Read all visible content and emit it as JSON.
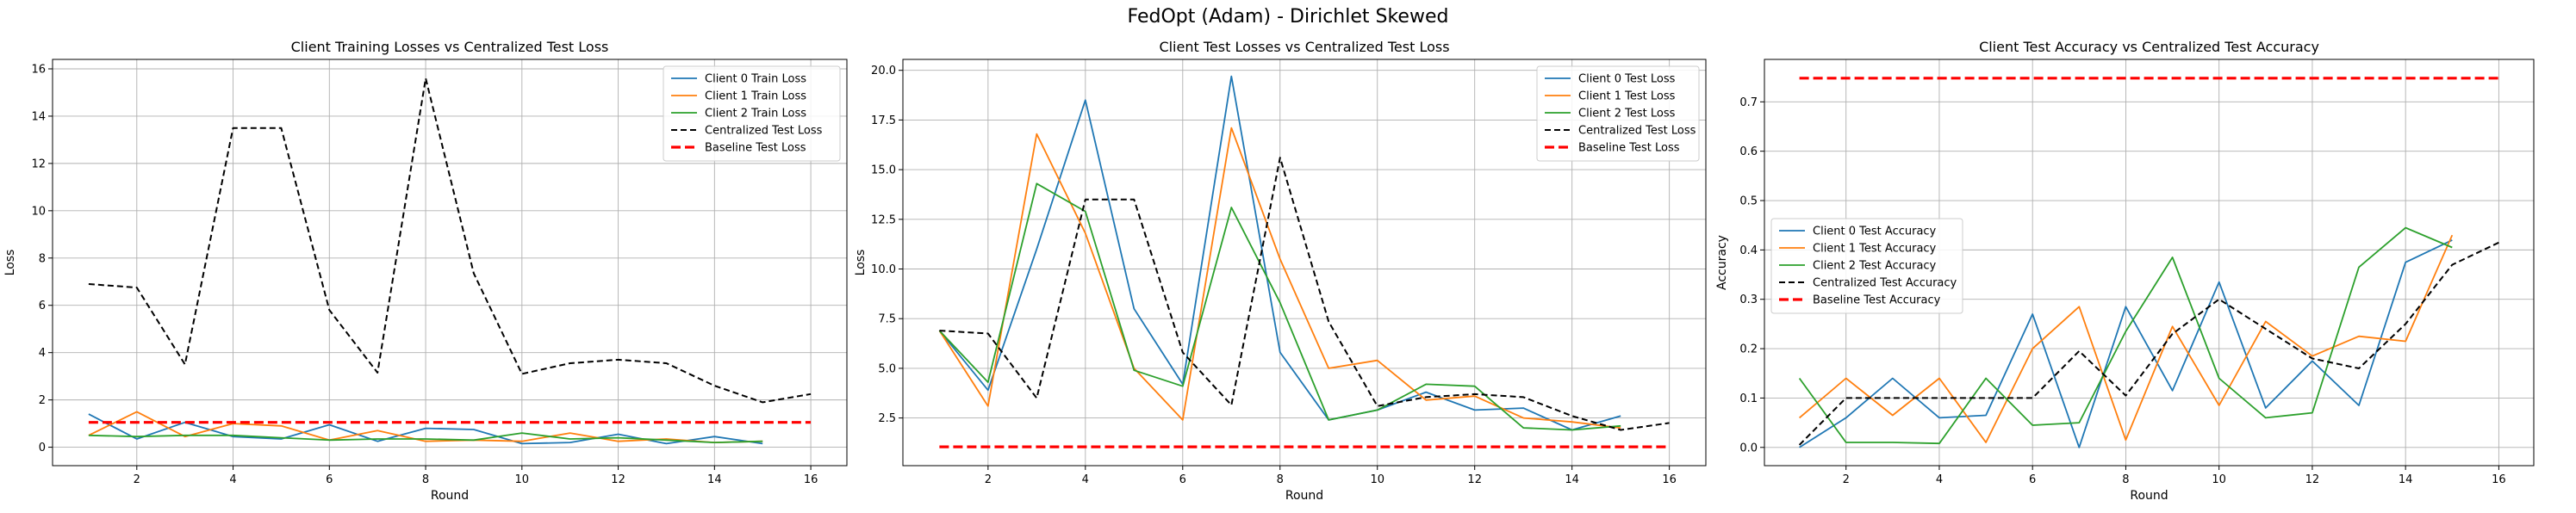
{
  "suptitle": "FedOpt (Adam) - Dirichlet Skewed",
  "colors": {
    "client0": "#1f77b4",
    "client1": "#ff7f0e",
    "client2": "#2ca02c",
    "centralized": "#000000",
    "baseline": "#ff0000",
    "grid": "#b0b0b0"
  },
  "chart_data": [
    {
      "type": "line",
      "title": "Client Training Losses vs Centralized Test Loss",
      "xlabel": "Round",
      "ylabel": "Loss",
      "xlim": [
        0.25,
        16.75
      ],
      "ylim": [
        -0.78,
        16.4
      ],
      "xticks": [
        2,
        4,
        6,
        8,
        10,
        12,
        14,
        16
      ],
      "yticks": [
        0,
        2,
        4,
        6,
        8,
        10,
        12,
        14,
        16
      ],
      "grid": true,
      "legend_position": "upper-right",
      "series": [
        {
          "name": "Client 0 Train Loss",
          "color_key": "client0",
          "style": "solid",
          "x": [
            1,
            2,
            3,
            4,
            5,
            6,
            7,
            8,
            9,
            10,
            11,
            12,
            13,
            14,
            15
          ],
          "y": [
            1.4,
            0.35,
            1.05,
            0.45,
            0.35,
            0.95,
            0.25,
            0.8,
            0.75,
            0.15,
            0.2,
            0.55,
            0.15,
            0.45,
            0.15
          ]
        },
        {
          "name": "Client 1 Train Loss",
          "color_key": "client1",
          "style": "solid",
          "x": [
            1,
            2,
            3,
            4,
            5,
            6,
            7,
            8,
            9,
            10,
            11,
            12,
            13,
            14,
            15
          ],
          "y": [
            0.5,
            1.5,
            0.45,
            1.0,
            0.9,
            0.3,
            0.7,
            0.25,
            0.3,
            0.25,
            0.6,
            0.25,
            0.35,
            0.2,
            0.25
          ]
        },
        {
          "name": "Client 2 Train Loss",
          "color_key": "client2",
          "style": "solid",
          "x": [
            1,
            2,
            3,
            4,
            5,
            6,
            7,
            8,
            9,
            10,
            11,
            12,
            13,
            14,
            15
          ],
          "y": [
            0.5,
            0.45,
            0.5,
            0.5,
            0.4,
            0.3,
            0.35,
            0.35,
            0.3,
            0.6,
            0.35,
            0.4,
            0.3,
            0.2,
            0.25
          ]
        },
        {
          "name": "Centralized Test Loss",
          "color_key": "centralized",
          "style": "dashed",
          "x": [
            1,
            2,
            3,
            4,
            5,
            6,
            7,
            8,
            9,
            10,
            11,
            12,
            13,
            14,
            15,
            16
          ],
          "y": [
            6.9,
            6.75,
            3.5,
            13.5,
            13.5,
            5.8,
            3.15,
            15.6,
            7.35,
            3.1,
            3.55,
            3.7,
            3.55,
            2.6,
            1.9,
            2.25
          ]
        },
        {
          "name": "Baseline Test Loss",
          "color_key": "baseline",
          "style": "dashed-thick",
          "x": [
            1,
            16
          ],
          "y": [
            1.05,
            1.05
          ]
        }
      ]
    },
    {
      "type": "line",
      "title": "Client Test Losses vs Centralized Test Loss",
      "xlabel": "Round",
      "ylabel": "Loss",
      "xlim": [
        0.25,
        16.75
      ],
      "ylim": [
        0.1,
        20.55
      ],
      "xticks": [
        2,
        4,
        6,
        8,
        10,
        12,
        14,
        16
      ],
      "yticks": [
        2.5,
        5.0,
        7.5,
        10.0,
        12.5,
        15.0,
        17.5,
        20.0
      ],
      "ytick_labels": [
        "2.5",
        "5.0",
        "7.5",
        "10.0",
        "12.5",
        "15.0",
        "17.5",
        "20.0"
      ],
      "grid": true,
      "legend_position": "upper-right",
      "series": [
        {
          "name": "Client 0 Test Loss",
          "color_key": "client0",
          "style": "solid",
          "x": [
            1,
            2,
            3,
            4,
            5,
            6,
            7,
            8,
            9,
            10,
            11,
            12,
            13,
            14,
            15
          ],
          "y": [
            6.9,
            3.9,
            11.0,
            18.5,
            8.0,
            4.2,
            19.7,
            5.8,
            2.4,
            2.9,
            3.8,
            2.9,
            3.0,
            1.9,
            2.6
          ]
        },
        {
          "name": "Client 1 Test Loss",
          "color_key": "client1",
          "style": "solid",
          "x": [
            1,
            2,
            3,
            4,
            5,
            6,
            7,
            8,
            9,
            10,
            11,
            12,
            13,
            14,
            15
          ],
          "y": [
            6.9,
            3.1,
            16.8,
            11.8,
            5.0,
            2.4,
            17.1,
            10.5,
            5.0,
            5.4,
            3.4,
            3.6,
            2.5,
            2.3,
            2.0
          ]
        },
        {
          "name": "Client 2 Test Loss",
          "color_key": "client2",
          "style": "solid",
          "x": [
            1,
            2,
            3,
            4,
            5,
            6,
            7,
            8,
            9,
            10,
            11,
            12,
            13,
            14,
            15
          ],
          "y": [
            6.9,
            4.3,
            14.3,
            12.9,
            4.9,
            4.1,
            13.1,
            8.3,
            2.4,
            2.9,
            4.2,
            4.1,
            2.0,
            1.9,
            2.1
          ]
        },
        {
          "name": "Centralized Test Loss",
          "color_key": "centralized",
          "style": "dashed",
          "x": [
            1,
            2,
            3,
            4,
            5,
            6,
            7,
            8,
            9,
            10,
            11,
            12,
            13,
            14,
            15,
            16
          ],
          "y": [
            6.9,
            6.75,
            3.5,
            13.5,
            13.5,
            5.8,
            3.15,
            15.6,
            7.35,
            3.1,
            3.55,
            3.7,
            3.55,
            2.6,
            1.9,
            2.25
          ]
        },
        {
          "name": "Baseline Test Loss",
          "color_key": "baseline",
          "style": "dashed-thick",
          "x": [
            1,
            16
          ],
          "y": [
            1.05,
            1.05
          ]
        }
      ]
    },
    {
      "type": "line",
      "title": "Client Test Accuracy vs Centralized Test Accuracy",
      "xlabel": "Round",
      "ylabel": "Accuracy",
      "xlim": [
        0.25,
        16.75
      ],
      "ylim": [
        -0.037,
        0.786
      ],
      "xticks": [
        2,
        4,
        6,
        8,
        10,
        12,
        14,
        16
      ],
      "yticks": [
        0.0,
        0.1,
        0.2,
        0.3,
        0.4,
        0.5,
        0.6,
        0.7
      ],
      "ytick_labels": [
        "0.0",
        "0.1",
        "0.2",
        "0.3",
        "0.4",
        "0.5",
        "0.6",
        "0.7"
      ],
      "grid": true,
      "legend_position": "center-left",
      "series": [
        {
          "name": "Client 0 Test Accuracy",
          "color_key": "client0",
          "style": "solid",
          "x": [
            1,
            2,
            3,
            4,
            5,
            6,
            7,
            8,
            9,
            10,
            11,
            12,
            13,
            14,
            15
          ],
          "y": [
            0.0,
            0.06,
            0.14,
            0.06,
            0.065,
            0.27,
            0.0,
            0.285,
            0.115,
            0.335,
            0.08,
            0.175,
            0.085,
            0.375,
            0.42
          ]
        },
        {
          "name": "Client 1 Test Accuracy",
          "color_key": "client1",
          "style": "solid",
          "x": [
            1,
            2,
            3,
            4,
            5,
            6,
            7,
            8,
            9,
            10,
            11,
            12,
            13,
            14,
            15
          ],
          "y": [
            0.06,
            0.14,
            0.065,
            0.14,
            0.01,
            0.2,
            0.285,
            0.015,
            0.245,
            0.085,
            0.255,
            0.185,
            0.225,
            0.215,
            0.43
          ]
        },
        {
          "name": "Client 2 Test Accuracy",
          "color_key": "client2",
          "style": "solid",
          "x": [
            1,
            2,
            3,
            4,
            5,
            6,
            7,
            8,
            9,
            10,
            11,
            12,
            13,
            14,
            15
          ],
          "y": [
            0.14,
            0.01,
            0.01,
            0.008,
            0.14,
            0.045,
            0.05,
            0.235,
            0.385,
            0.14,
            0.06,
            0.07,
            0.365,
            0.445,
            0.405
          ]
        },
        {
          "name": "Centralized Test Accuracy",
          "color_key": "centralized",
          "style": "dashed",
          "x": [
            1,
            2,
            3,
            4,
            5,
            6,
            7,
            8,
            9,
            10,
            11,
            12,
            13,
            14,
            15,
            16
          ],
          "y": [
            0.005,
            0.1,
            0.1,
            0.1,
            0.1,
            0.1,
            0.195,
            0.105,
            0.23,
            0.3,
            0.24,
            0.18,
            0.16,
            0.25,
            0.37,
            0.415
          ]
        },
        {
          "name": "Baseline Test Accuracy",
          "color_key": "baseline",
          "style": "dashed-thick",
          "x": [
            1,
            16
          ],
          "y": [
            0.748,
            0.748
          ]
        }
      ]
    }
  ]
}
